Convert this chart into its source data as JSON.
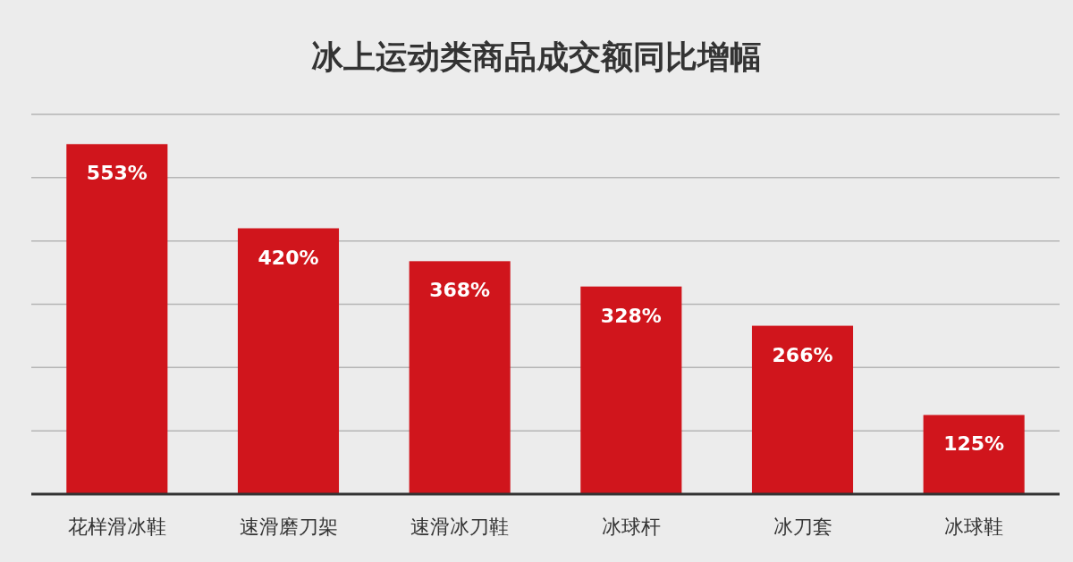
{
  "chart_data": {
    "type": "bar",
    "title": "冰上运动类商品成交额同比增幅",
    "categories": [
      "花样滑冰鞋",
      "速滑磨刀架",
      "速滑冰刀鞋",
      "冰球杆",
      "冰刀套",
      "冰球鞋"
    ],
    "values": [
      553,
      420,
      368,
      328,
      266,
      125
    ],
    "value_labels": [
      "553%",
      "420%",
      "368%",
      "328%",
      "266%",
      "125%"
    ],
    "color": "#d0151c",
    "ylim": [
      0,
      600
    ],
    "yticks": [
      {
        "value": 0,
        "label": null
      },
      {
        "value": 100,
        "label": null
      },
      {
        "value": 200,
        "label": null
      },
      {
        "value": 300,
        "label": null
      },
      {
        "value": 400,
        "label": null
      },
      {
        "value": 500,
        "label": null
      },
      {
        "value": 600,
        "label": null
      }
    ],
    "grid": "y",
    "tick_labels": "x"
  }
}
